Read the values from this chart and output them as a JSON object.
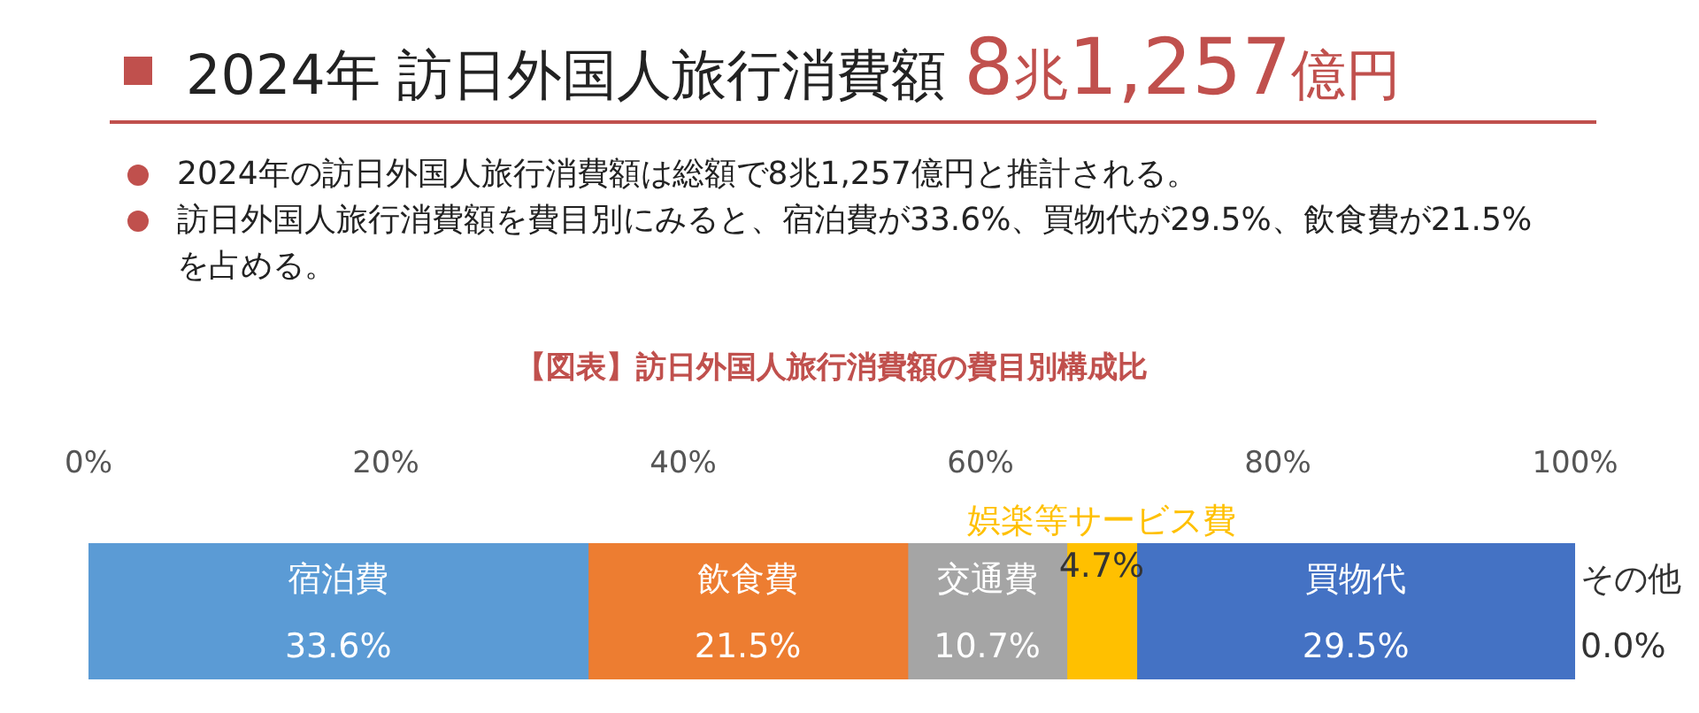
{
  "chart_data": {
    "type": "bar",
    "orientation": "horizontal",
    "stacked": true,
    "legend": false,
    "grid": false,
    "title": "2024年 訪日外国人旅行消費額 8兆1,257億円",
    "subtitle": "【図表】訪日外国人旅行消費額の費目別構成比",
    "annotations": [
      "2024年の訪日外国人旅行消費額は総額で8兆1,257億円と推計される。",
      "訪日外国人旅行消費額を費目別にみると、宿泊費が33.6%、買物代が29.5%、飲食費が21.5%を占める。"
    ],
    "categories": [
      null
    ],
    "xlim": [
      0,
      100
    ],
    "xticks": [
      {
        "value": 0,
        "label": "0%"
      },
      {
        "value": 20,
        "label": "20%"
      },
      {
        "value": 40,
        "label": "40%"
      },
      {
        "value": 60,
        "label": "60%"
      },
      {
        "value": 80,
        "label": "80%"
      },
      {
        "value": 100,
        "label": "100%"
      }
    ],
    "series": [
      {
        "name": "宿泊費",
        "color": "#5b9bd5",
        "values": [
          33.6
        ],
        "value_labels": [
          "33.6%"
        ]
      },
      {
        "name": "飲食費",
        "color": "#ed7d31",
        "values": [
          21.5
        ],
        "value_labels": [
          "21.5%"
        ]
      },
      {
        "name": "交通費",
        "color": "#a5a5a5",
        "values": [
          10.7
        ],
        "value_labels": [
          "10.7%"
        ]
      },
      {
        "name": "娯楽等サービス費",
        "color": "#ffc000",
        "values": [
          4.7
        ],
        "value_labels": [
          "4.7%"
        ]
      },
      {
        "name": "買物代",
        "color": "#4472c4",
        "values": [
          29.5
        ],
        "value_labels": [
          "29.5%"
        ]
      },
      {
        "name": "その他",
        "color": "#70ad47",
        "values": [
          0.0
        ],
        "value_labels": [
          "0.0%"
        ]
      }
    ]
  }
}
